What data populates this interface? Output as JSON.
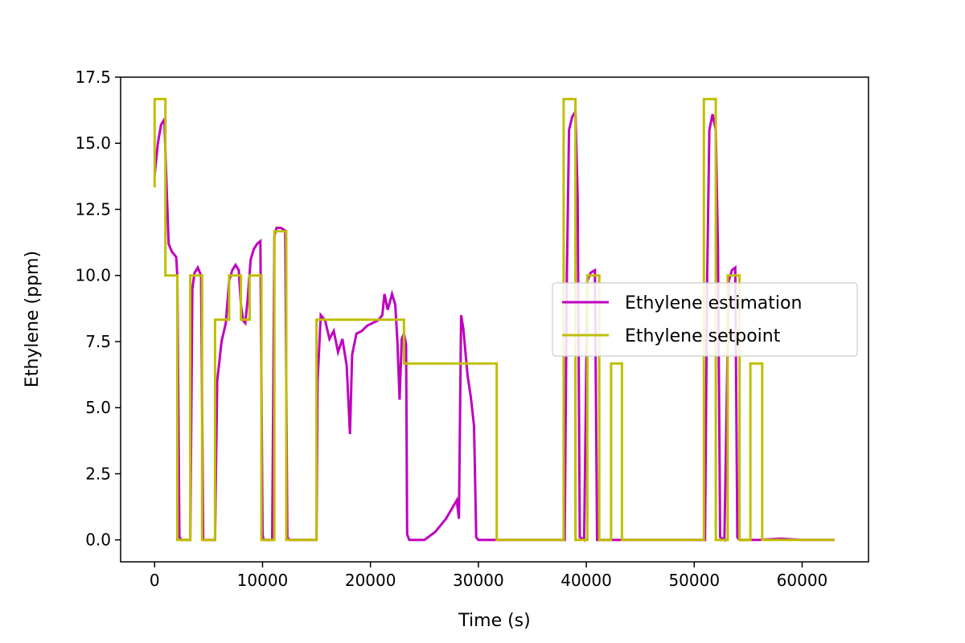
{
  "chart_data": {
    "type": "line",
    "title": "",
    "xlabel": "Time (s)",
    "ylabel": "Ethylene (ppm)",
    "xlim": [
      -3150,
      66150
    ],
    "ylim": [
      -0.83,
      17.5
    ],
    "xticks": [
      0,
      10000,
      20000,
      30000,
      40000,
      50000,
      60000
    ],
    "yticks": [
      0.0,
      2.5,
      5.0,
      7.5,
      10.0,
      12.5,
      15.0,
      17.5
    ],
    "xtick_labels": [
      "0",
      "10000",
      "20000",
      "30000",
      "40000",
      "50000",
      "60000"
    ],
    "ytick_labels": [
      "0.0",
      "2.5",
      "5.0",
      "7.5",
      "10.0",
      "12.5",
      "15.0",
      "17.5"
    ],
    "grid": false,
    "legend_position": "center-right",
    "series": [
      {
        "name": "Ethylene estimation",
        "color": "#bf00bf",
        "x": [
          0,
          300,
          600,
          900,
          1100,
          1300,
          1600,
          2000,
          2100,
          2300,
          2500,
          2900,
          3300,
          3500,
          3700,
          4000,
          4300,
          4500,
          4700,
          5000,
          5300,
          5600,
          5800,
          6200,
          6600,
          6900,
          7200,
          7500,
          7800,
          8000,
          8200,
          8400,
          8600,
          8900,
          9200,
          9500,
          9800,
          10000,
          10100,
          10300,
          10600,
          10900,
          11100,
          11300,
          11700,
          12100,
          12300,
          12500,
          13000,
          14000,
          15000,
          15100,
          15400,
          15800,
          16200,
          16600,
          17000,
          17400,
          17800,
          18100,
          18300,
          18700,
          19200,
          19700,
          20200,
          20700,
          21100,
          21300,
          21600,
          22000,
          22300,
          22500,
          22700,
          22900,
          23100,
          23300,
          23400,
          23600,
          24000,
          25000,
          26000,
          27000,
          28000,
          28200,
          28400,
          28600,
          29000,
          29300,
          29600,
          29800,
          30000,
          31000,
          32000,
          35000,
          38000,
          38200,
          38400,
          38700,
          39000,
          39200,
          39400,
          39800,
          40100,
          40400,
          40800,
          41000,
          41200,
          41500,
          43000,
          46000,
          50000,
          51000,
          51200,
          51400,
          51700,
          52000,
          52200,
          52400,
          52800,
          53200,
          53500,
          53800,
          54000,
          54200,
          54500,
          56000,
          58000,
          60000,
          63000
        ],
        "y": [
          13.8,
          15.0,
          15.7,
          15.9,
          13.5,
          11.2,
          10.9,
          10.7,
          10.0,
          0.1,
          0.0,
          0.0,
          0.0,
          9.5,
          10.1,
          10.3,
          10.0,
          0.0,
          0.0,
          0.0,
          0.0,
          0.0,
          6.0,
          7.5,
          8.2,
          9.8,
          10.2,
          10.4,
          10.2,
          8.9,
          8.3,
          8.2,
          9.0,
          10.6,
          11.0,
          11.2,
          11.3,
          0.2,
          0.0,
          0.0,
          0.0,
          0.0,
          11.5,
          11.8,
          11.8,
          11.7,
          0.1,
          0.0,
          0.0,
          0.0,
          0.0,
          6.0,
          8.5,
          8.3,
          7.6,
          7.9,
          7.1,
          7.6,
          6.6,
          4.0,
          7.0,
          7.8,
          7.9,
          8.1,
          8.2,
          8.3,
          8.5,
          9.3,
          8.7,
          9.3,
          8.9,
          7.5,
          5.3,
          7.6,
          7.8,
          7.4,
          0.2,
          0.0,
          0.0,
          0.0,
          0.3,
          0.8,
          1.5,
          0.8,
          8.5,
          8.0,
          6.2,
          5.4,
          4.3,
          0.1,
          0.0,
          0.0,
          0.0,
          0.0,
          0.0,
          10.0,
          15.5,
          16.0,
          16.2,
          13.0,
          0.1,
          0.0,
          9.8,
          10.1,
          10.2,
          0.0,
          0.0,
          0.0,
          0.0,
          0.0,
          0.0,
          0.0,
          10.0,
          15.5,
          16.1,
          15.5,
          11.0,
          0.1,
          0.0,
          9.8,
          10.2,
          10.3,
          0.1,
          0.0,
          0.0,
          0.0,
          0.05,
          0.0,
          0.0
        ]
      },
      {
        "name": "Ethylene setpoint",
        "color": "#bfbf00",
        "x": [
          0,
          0,
          1000,
          1000,
          2100,
          2100,
          3300,
          3300,
          4400,
          4400,
          5600,
          5600,
          6900,
          6900,
          8000,
          8000,
          8800,
          8800,
          9900,
          9900,
          11100,
          11100,
          12200,
          12200,
          15000,
          15000,
          23100,
          23100,
          31700,
          31700,
          37900,
          37900,
          39000,
          39000,
          40100,
          40100,
          41200,
          41200,
          42300,
          42300,
          43300,
          43300,
          50900,
          50900,
          52000,
          52000,
          53100,
          53100,
          54200,
          54200,
          55200,
          55200,
          56300,
          56300,
          63000
        ],
        "y": [
          13.33,
          16.67,
          16.67,
          10.0,
          10.0,
          0.0,
          0.0,
          10.0,
          10.0,
          0.0,
          0.0,
          8.33,
          8.33,
          10.0,
          10.0,
          8.33,
          8.33,
          10.0,
          10.0,
          0.0,
          0.0,
          11.67,
          11.67,
          0.0,
          0.0,
          8.33,
          8.33,
          6.67,
          6.67,
          0.0,
          0.0,
          16.67,
          16.67,
          0.0,
          0.0,
          10.0,
          10.0,
          0.0,
          0.0,
          6.67,
          6.67,
          0.0,
          0.0,
          16.67,
          16.67,
          0.0,
          0.0,
          10.0,
          10.0,
          0.0,
          0.0,
          6.67,
          6.67,
          0.0,
          0.0
        ]
      }
    ]
  }
}
